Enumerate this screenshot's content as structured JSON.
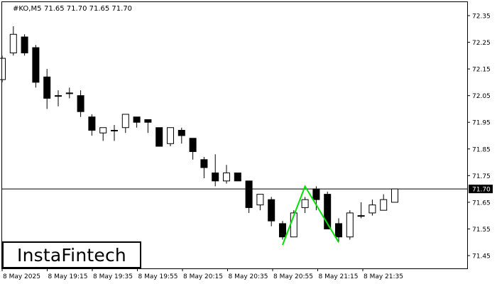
{
  "header": {
    "symbol": "#KO,M5",
    "ohlc": "71.65 71.70 71.65 71.70"
  },
  "logo": {
    "text": "InstaFintech"
  },
  "colors": {
    "pattern_line": "#00e000",
    "bull_body": "#ffffff",
    "bear_body": "#000000",
    "price_line": "#000000"
  },
  "chart_data": {
    "type": "candlestick",
    "symbol": "#KO",
    "timeframe": "M5",
    "ylim": [
      71.42,
      72.37
    ],
    "y_ticks": [
      "72.35",
      "72.25",
      "72.15",
      "72.05",
      "71.95",
      "71.85",
      "71.75",
      "71.65",
      "71.55",
      "71.45"
    ],
    "x_ticks": [
      "8 May 2025",
      "8 May 19:15",
      "8 May 19:35",
      "8 May 19:55",
      "8 May 20:15",
      "8 May 20:35",
      "8 May 20:55",
      "8 May 21:15",
      "8 May 21:35"
    ],
    "current_price": "71.70",
    "pattern": {
      "name": "Double Bottom",
      "points": [
        {
          "bar": 25,
          "price": 71.49
        },
        {
          "bar": 27,
          "price": 71.71
        },
        {
          "bar": 30,
          "price": 71.5
        }
      ]
    },
    "candles": [
      {
        "o": 72.11,
        "h": 72.2,
        "l": 72.1,
        "c": 72.19
      },
      {
        "o": 72.21,
        "h": 72.31,
        "l": 72.2,
        "c": 72.28
      },
      {
        "o": 72.27,
        "h": 72.28,
        "l": 72.2,
        "c": 72.21
      },
      {
        "o": 72.23,
        "h": 72.24,
        "l": 72.08,
        "c": 72.1
      },
      {
        "o": 72.12,
        "h": 72.15,
        "l": 72.0,
        "c": 72.04
      },
      {
        "o": 72.05,
        "h": 72.07,
        "l": 72.01,
        "c": 72.05
      },
      {
        "o": 72.06,
        "h": 72.08,
        "l": 72.04,
        "c": 72.06
      },
      {
        "o": 72.05,
        "h": 72.07,
        "l": 71.97,
        "c": 71.99
      },
      {
        "o": 71.97,
        "h": 71.98,
        "l": 71.9,
        "c": 71.92
      },
      {
        "o": 71.91,
        "h": 71.93,
        "l": 71.88,
        "c": 71.93
      },
      {
        "o": 71.92,
        "h": 71.94,
        "l": 71.88,
        "c": 71.92
      },
      {
        "o": 71.93,
        "h": 71.98,
        "l": 71.91,
        "c": 71.98
      },
      {
        "o": 71.97,
        "h": 71.97,
        "l": 71.93,
        "c": 71.95
      },
      {
        "o": 71.96,
        "h": 71.96,
        "l": 71.91,
        "c": 71.95
      },
      {
        "o": 71.93,
        "h": 71.93,
        "l": 71.86,
        "c": 71.86
      },
      {
        "o": 71.87,
        "h": 71.93,
        "l": 71.86,
        "c": 71.93
      },
      {
        "o": 71.92,
        "h": 71.93,
        "l": 71.87,
        "c": 71.9
      },
      {
        "o": 71.89,
        "h": 71.89,
        "l": 71.81,
        "c": 71.84
      },
      {
        "o": 71.81,
        "h": 71.82,
        "l": 71.74,
        "c": 71.78
      },
      {
        "o": 71.76,
        "h": 71.83,
        "l": 71.71,
        "c": 71.73
      },
      {
        "o": 71.73,
        "h": 71.79,
        "l": 71.72,
        "c": 71.76
      },
      {
        "o": 71.76,
        "h": 71.76,
        "l": 71.73,
        "c": 71.73
      },
      {
        "o": 71.73,
        "h": 71.73,
        "l": 71.61,
        "c": 71.63
      },
      {
        "o": 71.64,
        "h": 71.68,
        "l": 71.62,
        "c": 71.68
      },
      {
        "o": 71.66,
        "h": 71.67,
        "l": 71.56,
        "c": 71.58
      },
      {
        "o": 71.57,
        "h": 71.58,
        "l": 71.51,
        "c": 71.52
      },
      {
        "o": 71.52,
        "h": 71.62,
        "l": 71.52,
        "c": 71.61
      },
      {
        "o": 71.63,
        "h": 71.67,
        "l": 71.61,
        "c": 71.66
      },
      {
        "o": 71.7,
        "h": 71.71,
        "l": 71.62,
        "c": 71.66
      },
      {
        "o": 71.68,
        "h": 71.69,
        "l": 71.55,
        "c": 71.55
      },
      {
        "o": 71.57,
        "h": 71.59,
        "l": 71.5,
        "c": 71.52
      },
      {
        "o": 71.52,
        "h": 71.62,
        "l": 71.51,
        "c": 71.61
      },
      {
        "o": 71.6,
        "h": 71.65,
        "l": 71.59,
        "c": 71.6
      },
      {
        "o": 71.61,
        "h": 71.66,
        "l": 71.6,
        "c": 71.64
      },
      {
        "o": 71.62,
        "h": 71.68,
        "l": 71.62,
        "c": 71.66
      },
      {
        "o": 71.65,
        "h": 71.7,
        "l": 71.65,
        "c": 71.7
      }
    ]
  }
}
